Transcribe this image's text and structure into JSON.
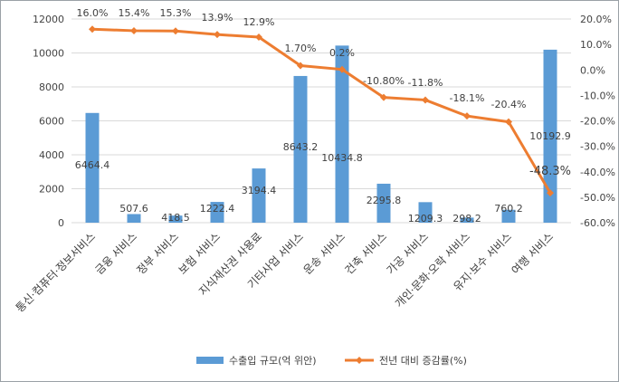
{
  "chart_data": {
    "type": "bar",
    "categories": [
      "통신·컴퓨터·정보서비스",
      "금융 서비스",
      "정부 서비스",
      "보험 서비스",
      "지식재산권 사용료",
      "기타사업 서비스",
      "운송 서비스",
      "건축 서비스",
      "가공 서비스",
      "개인·문화·오락 서비스",
      "유지·보수 서비스",
      "여행 서비스"
    ],
    "series": [
      {
        "name": "수출입 규모(억 위안)",
        "type": "bar",
        "axis": "left",
        "color": "#5b9bd5",
        "values": [
          6464.4,
          507.6,
          418.5,
          1222.4,
          3194.4,
          8643.2,
          10434.8,
          2295.8,
          1209.3,
          298.2,
          760.2,
          10192.9
        ],
        "labels": [
          "6464.4",
          "507.6",
          "418.5",
          "1222.4",
          "3194.4",
          "8643.2",
          "10434.8",
          "2295.8",
          "1209.3",
          "298.2",
          "760.2",
          "10192.9"
        ]
      },
      {
        "name": "전년 대비 증감률(%)",
        "type": "line",
        "axis": "right",
        "color": "#ed7d31",
        "values": [
          16.0,
          15.4,
          15.3,
          13.9,
          12.9,
          1.7,
          0.2,
          -10.8,
          -11.8,
          -18.1,
          -20.4,
          -48.3
        ],
        "labels": [
          "16.0%",
          "15.4%",
          "15.3%",
          "13.9%",
          "12.9%",
          "1.70%",
          "0.2%",
          "-10.80%",
          "-11.8%",
          "-18.1%",
          "-20.4%",
          "-48.3%"
        ]
      }
    ],
    "y_left": {
      "min": 0,
      "max": 12000,
      "ticks": [
        "0",
        "2000",
        "4000",
        "6000",
        "8000",
        "10000",
        "12000"
      ]
    },
    "y_right": {
      "min": -60,
      "max": 20,
      "ticks": [
        "-60.0%",
        "-50.0%",
        "-40.0%",
        "-30.0%",
        "-20.0%",
        "-10.0%",
        "0.0%",
        "10.0%",
        "20.0%"
      ]
    },
    "grid": true,
    "legend_position": "bottom"
  }
}
